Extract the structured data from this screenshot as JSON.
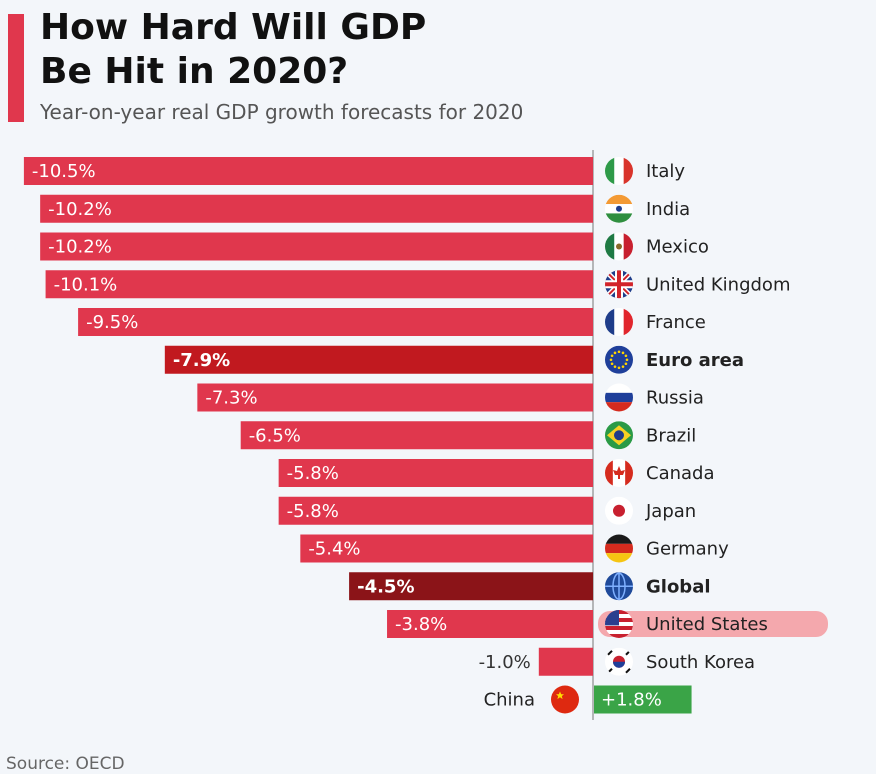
{
  "header": {
    "title_line1": "How Hard Will GDP",
    "title_line2": "Be Hit in 2020?",
    "subtitle": "Year-on-year real GDP growth forecasts for 2020"
  },
  "footer": {
    "source": "Source: OECD"
  },
  "colors": {
    "bar_default": "#e0374d",
    "bar_euro": "#c1191f",
    "bar_global": "#8b1418",
    "bar_positive": "#3aa447",
    "highlight": "#f39a9f",
    "background": "#f3f6fa"
  },
  "chart_data": {
    "type": "bar",
    "orientation": "horizontal",
    "title": "How Hard Will GDP Be Hit in 2020?",
    "subtitle": "Year-on-year real GDP growth forecasts for 2020",
    "categories": [
      "Italy",
      "India",
      "Mexico",
      "United Kingdom",
      "France",
      "Euro area",
      "Russia",
      "Brazil",
      "Canada",
      "Japan",
      "Germany",
      "Global",
      "United States",
      "South Korea",
      "China"
    ],
    "values": [
      -10.5,
      -10.2,
      -10.2,
      -10.1,
      -9.5,
      -7.9,
      -7.3,
      -6.5,
      -5.8,
      -5.8,
      -5.4,
      -4.5,
      -3.8,
      -1.0,
      1.8
    ],
    "labels": [
      "-10.5%",
      "-10.2%",
      "-10.2%",
      "-10.1%",
      "-9.5%",
      "-7.9%",
      "-7.3%",
      "-6.5%",
      "-5.8%",
      "-5.8%",
      "-5.4%",
      "-4.5%",
      "-3.8%",
      "-1.0%",
      "+1.8%"
    ],
    "bold_categories": [
      "Euro area",
      "Global"
    ],
    "highlighted_category": "United States",
    "flags": [
      "italy-flag-icon",
      "india-flag-icon",
      "mexico-flag-icon",
      "uk-flag-icon",
      "france-flag-icon",
      "eu-flag-icon",
      "russia-flag-icon",
      "brazil-flag-icon",
      "canada-flag-icon",
      "japan-flag-icon",
      "germany-flag-icon",
      "globe-icon",
      "usa-flag-icon",
      "south-korea-flag-icon",
      "china-flag-icon"
    ]
  }
}
